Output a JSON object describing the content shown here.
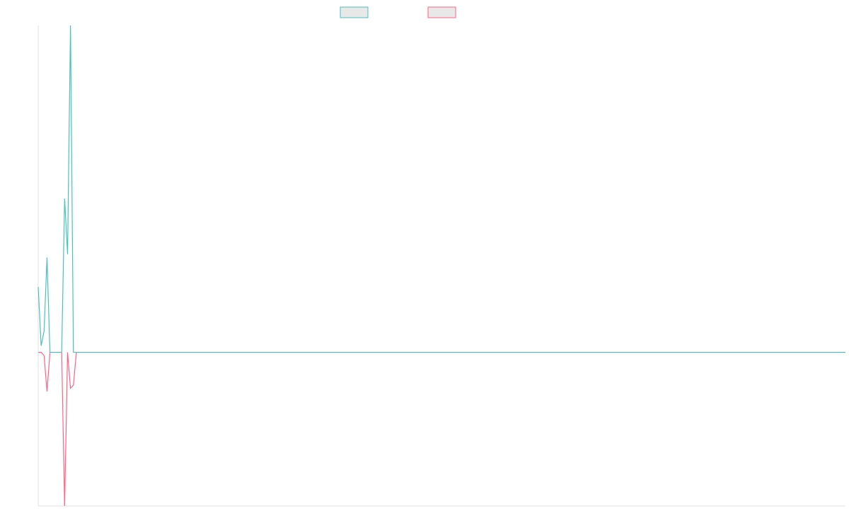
{
  "chart_data": {
    "type": "line",
    "x": [
      0,
      1,
      2,
      3,
      4,
      5,
      6,
      7,
      8,
      9,
      10,
      11,
      12,
      13,
      275
    ],
    "xlim": [
      0,
      275
    ],
    "ylim": [
      -0.47,
      1
    ],
    "series": [
      {
        "color": "#4bc0c0",
        "values": [
          0.2,
          0.02,
          0.065,
          0.29,
          0,
          0,
          0,
          0,
          0,
          0.47,
          0.3,
          1,
          0,
          0,
          0
        ]
      },
      {
        "color": "#ff6384",
        "values": [
          0,
          0,
          -0.01,
          -0.12,
          0,
          0,
          0,
          0,
          0,
          -0.47,
          0,
          -0.11,
          -0.1,
          0,
          0
        ]
      }
    ]
  }
}
